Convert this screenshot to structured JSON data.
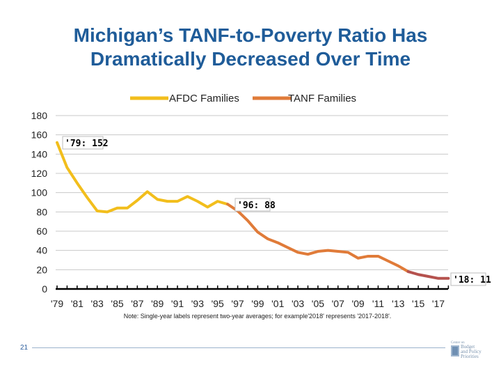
{
  "title_line1": "Michigan’s TANF-to-Poverty Ratio Has",
  "title_line2": "Dramatically Decreased Over Time",
  "note": "Note: Single-year labels represent two-year averages; for example'2018' represents '2017-2018'.",
  "page_number": "21",
  "logo_text": "Center on Budget and Policy Priorities",
  "chart_data": {
    "type": "line",
    "title": "Michigan’s TANF-to-Poverty Ratio Has Dramatically Decreased Over Time",
    "xlabel": "",
    "ylabel": "",
    "ylim": [
      0,
      180
    ],
    "yticks": [
      0,
      20,
      40,
      60,
      80,
      100,
      120,
      140,
      160,
      180
    ],
    "xticks": [
      "'79",
      "'81",
      "'83",
      "'85",
      "'87",
      "'89",
      "'91",
      "'93",
      "'95",
      "'97",
      "'99",
      "'01",
      "'03",
      "'05",
      "'07",
      "'09",
      "'11",
      "'13",
      "'15",
      "'17"
    ],
    "grid": true,
    "legend_placement": "top",
    "series": [
      {
        "name": "AFDC Families",
        "color": "#F2BE1C",
        "x": [
          1979,
          1980,
          1981,
          1982,
          1983,
          1984,
          1985,
          1986,
          1987,
          1988,
          1989,
          1990,
          1991,
          1992,
          1993,
          1994,
          1995,
          1996
        ],
        "values": [
          152,
          126,
          110,
          95,
          81,
          80,
          84,
          84,
          92,
          101,
          93,
          91,
          91,
          96,
          91,
          85,
          91,
          88
        ]
      },
      {
        "name": "TANF Families",
        "color": "#E07B39",
        "x": [
          1996,
          1997,
          1998,
          1999,
          2000,
          2001,
          2002,
          2003,
          2004,
          2005,
          2006,
          2007,
          2008,
          2009,
          2010,
          2011,
          2012,
          2013,
          2014
        ],
        "values": [
          88,
          81,
          71,
          59,
          52,
          48,
          43,
          38,
          36,
          39,
          40,
          39,
          38,
          32,
          34,
          34,
          29,
          24,
          18
        ]
      },
      {
        "color": "#B5524E",
        "x": [
          2014,
          2015,
          2016,
          2017,
          2018
        ],
        "values": [
          18,
          15,
          13,
          11,
          11
        ]
      }
    ],
    "annotations": [
      "'79: 152",
      "'96: 88",
      "'18: 11"
    ]
  }
}
